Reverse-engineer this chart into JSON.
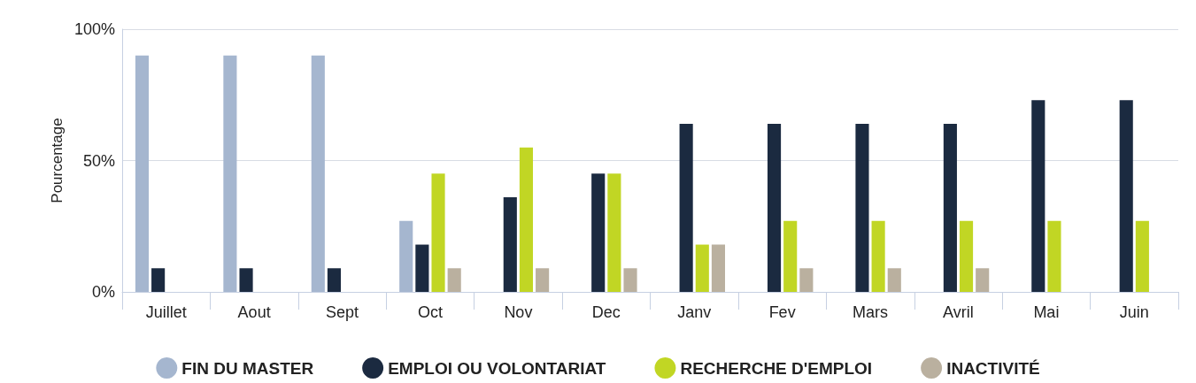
{
  "chart_data": {
    "type": "bar",
    "ylabel": "Pourcentage",
    "categories": [
      "Juillet",
      "Aout",
      "Sept",
      "Oct",
      "Nov",
      "Dec",
      "Janv",
      "Fev",
      "Mars",
      "Avril",
      "Mai",
      "Juin"
    ],
    "series": [
      {
        "name": "FIN DU MASTER",
        "color": "#a5b6cf",
        "values": [
          90,
          90,
          90,
          27,
          null,
          null,
          null,
          null,
          null,
          null,
          null,
          null
        ]
      },
      {
        "name": "EMPLOI OU VOLONTARIAT",
        "color": "#1b2a40",
        "values": [
          9,
          9,
          9,
          18,
          36,
          45,
          64,
          64,
          64,
          64,
          73,
          73
        ]
      },
      {
        "name": "RECHERCHE D'EMPLOI",
        "color": "#c1d624",
        "values": [
          null,
          null,
          null,
          45,
          55,
          45,
          18,
          27,
          27,
          27,
          27,
          27
        ]
      },
      {
        "name": "INACTIVITÉ",
        "color": "#bab09f",
        "values": [
          null,
          null,
          null,
          9,
          9,
          9,
          18,
          9,
          9,
          9,
          null,
          null
        ]
      }
    ],
    "ylim": [
      0,
      100
    ],
    "yticks": [
      {
        "value": 0,
        "label": "0%"
      },
      {
        "value": 50,
        "label": "50%"
      },
      {
        "value": 100,
        "label": "100%"
      }
    ],
    "grid": "y",
    "legend": "bottom"
  }
}
